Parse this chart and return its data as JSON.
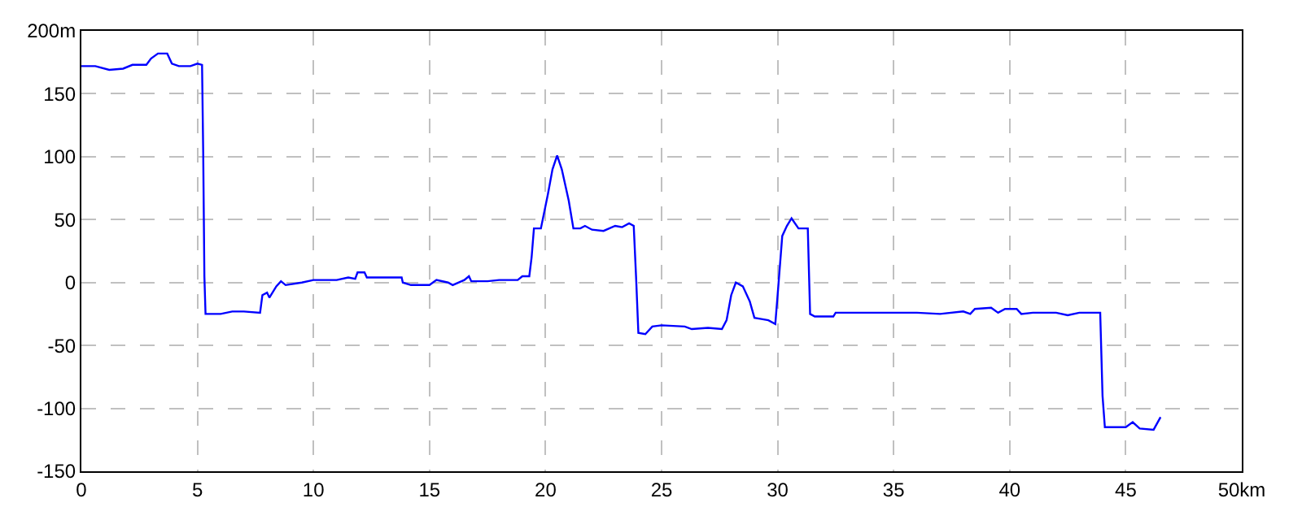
{
  "chart_data": {
    "type": "line",
    "x": [
      0,
      0.6,
      1.2,
      1.8,
      2.2,
      2.8,
      3.0,
      3.3,
      3.7,
      3.9,
      4.2,
      4.7,
      5.0,
      5.2,
      5.25,
      5.3,
      5.35,
      6.0,
      6.5,
      7.0,
      7.7,
      7.8,
      8.0,
      8.1,
      8.4,
      8.6,
      8.8,
      9.5,
      10,
      11,
      11.5,
      11.8,
      11.9,
      12.2,
      12.3,
      13.8,
      13.85,
      14.2,
      15,
      15.3,
      15.8,
      16,
      16.5,
      16.7,
      16.8,
      17.5,
      18,
      18.8,
      19,
      19.3,
      19.4,
      19.5,
      19.8,
      20.1,
      20.3,
      20.5,
      20.7,
      21.0,
      21.2,
      21.5,
      21.7,
      22,
      22.5,
      23,
      23.3,
      23.6,
      23.8,
      23.9,
      24.0,
      24.3,
      24.6,
      25,
      26,
      26.3,
      27,
      27.6,
      27.8,
      28,
      28.2,
      28.5,
      28.8,
      29.0,
      29.3,
      29.6,
      29.9,
      30.0,
      30.2,
      30.4,
      30.6,
      30.9,
      31.3,
      31.4,
      31.6,
      32.4,
      32.5,
      34,
      36,
      37,
      38,
      38.3,
      38.5,
      39.2,
      39.5,
      39.8,
      40.3,
      40.5,
      41,
      42,
      42.5,
      43,
      43.9,
      44.0,
      44.1,
      45,
      45.3,
      45.6,
      46.2,
      46.5
    ],
    "series": [
      {
        "color": "#0000ff",
        "values": [
          172,
          172,
          169,
          170,
          173,
          173,
          178,
          182,
          182,
          174,
          172,
          172,
          174,
          173,
          103,
          5,
          -25,
          -25,
          -23,
          -23,
          -24,
          -10,
          -8,
          -12,
          -3,
          1,
          -2,
          0,
          2,
          2,
          4,
          3,
          8,
          8,
          4,
          4,
          0,
          -2,
          -2,
          2,
          0,
          -2,
          2,
          5,
          1,
          1,
          2,
          2,
          5,
          5,
          20,
          43,
          43,
          70,
          90,
          101,
          90,
          65,
          43,
          43,
          45,
          42,
          41,
          45,
          44,
          47,
          45,
          5,
          -40,
          -41,
          -35,
          -34,
          -35,
          -37,
          -36,
          -37,
          -30,
          -10,
          0,
          -3,
          -15,
          -28,
          -29,
          -30,
          -33,
          -10,
          37,
          45,
          51,
          43,
          43,
          -25,
          -27,
          -27,
          -24,
          -24,
          -24,
          -25,
          -23,
          -25,
          -21,
          -20,
          -24,
          -21,
          -21,
          -25,
          -24,
          -24,
          -26,
          -24,
          -24,
          -90,
          -115,
          -115,
          -111,
          -116,
          -117,
          -107
        ]
      }
    ],
    "xlim": [
      0,
      50
    ],
    "xticks": [
      0,
      5,
      10,
      15,
      20,
      25,
      30,
      35,
      40,
      45,
      {
        "value": 50,
        "label": "50km"
      }
    ],
    "ylim": [
      -150,
      200
    ],
    "yticks": [
      -150,
      -100,
      -50,
      0,
      50,
      100,
      150,
      {
        "value": 200,
        "label": "200m"
      }
    ],
    "grid": true,
    "line_style": "solid",
    "marker": "none"
  }
}
